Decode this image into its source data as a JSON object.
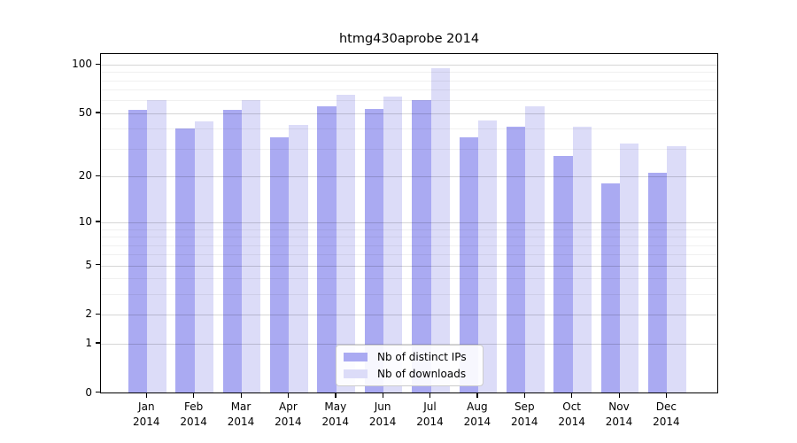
{
  "chart_data": {
    "type": "bar",
    "title": "htmg430aprobe 2014",
    "year": "2014",
    "months": [
      "Jan",
      "Feb",
      "Mar",
      "Apr",
      "May",
      "Jun",
      "Jul",
      "Aug",
      "Sep",
      "Oct",
      "Nov",
      "Dec"
    ],
    "series": [
      {
        "name": "Nb of distinct IPs",
        "color": "#aaaaf2",
        "values": [
          52,
          40,
          52,
          35,
          55,
          53,
          60,
          35,
          41,
          27,
          18,
          21
        ]
      },
      {
        "name": "Nb of downloads",
        "color": "#dcdcf8",
        "values": [
          60,
          44,
          60,
          42,
          65,
          63,
          95,
          45,
          55,
          41,
          32,
          31
        ]
      }
    ],
    "y_axis": {
      "scale": "log10(value+1)",
      "major_ticks": [
        100,
        50,
        20,
        10,
        5,
        2,
        1,
        0
      ],
      "minor_gridlines": [
        90,
        80,
        70,
        60,
        40,
        30,
        9,
        8,
        7,
        6,
        4,
        3
      ],
      "range_top": 118
    },
    "legend_position": "lower center",
    "grid": "on",
    "colors": {
      "distinct_ips": "#aaaaf2",
      "downloads": "#dcdcf8",
      "major_grid": "#d6d6d6",
      "minor_grid": "#efefef",
      "frame": "#000000"
    }
  }
}
